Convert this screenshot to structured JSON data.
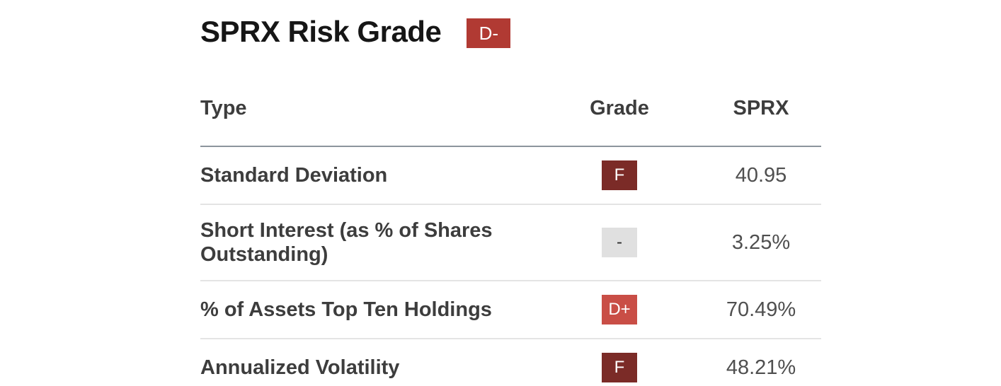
{
  "header": {
    "title": "SPRX Risk Grade"
  },
  "title_badge": {
    "label": "D-",
    "bg": "#b13a33",
    "text": "#ffffff"
  },
  "badge_styles": {
    "f": {
      "bg": "#7b2b27",
      "text": "#ffffff"
    },
    "d_plus": {
      "bg": "#c94e46",
      "text": "#ffffff"
    },
    "na": {
      "bg": "#e0e0e0",
      "text": "#2b2b2b"
    }
  },
  "table": {
    "columns": [
      "Type",
      "Grade",
      "SPRX"
    ],
    "rows": [
      {
        "type": "Standard Deviation",
        "grade": "F",
        "grade_style": "f",
        "value": "40.95"
      },
      {
        "type": "Short Interest (as % of Shares Outstanding)",
        "grade": "-",
        "grade_style": "na",
        "value": "3.25%"
      },
      {
        "type": "% of Assets Top Ten Holdings",
        "grade": "D+",
        "grade_style": "d_plus",
        "value": "70.49%"
      },
      {
        "type": "Annualized Volatility",
        "grade": "F",
        "grade_style": "f",
        "value": "48.21%"
      }
    ]
  }
}
